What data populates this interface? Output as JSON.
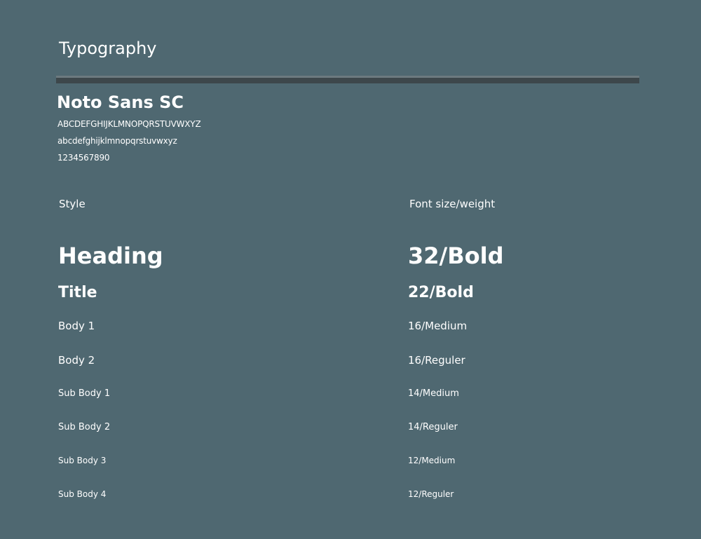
{
  "header": {
    "title": "Typography"
  },
  "font": {
    "name": "Noto Sans SC",
    "uppercase": "ABCDEFGHIJKLMNOPQRSTUVWXYZ",
    "lowercase": "abcdefghijklmnopqrstuvwxyz",
    "digits": "1234567890"
  },
  "table": {
    "columns": {
      "style": "Style",
      "size_weight": "Font size/weight"
    },
    "rows": [
      {
        "style": "Heading",
        "spec": "32/Bold"
      },
      {
        "style": "Title",
        "spec": "22/Bold"
      },
      {
        "style": "Body 1",
        "spec": "16/Medium"
      },
      {
        "style": "Body 2",
        "spec": "16/Reguler"
      },
      {
        "style": "Sub Body 1",
        "spec": "14/Medium"
      },
      {
        "style": "Sub Body 2",
        "spec": "14/Reguler"
      },
      {
        "style": "Sub Body 3",
        "spec": "12/Medium"
      },
      {
        "style": "Sub Body 4",
        "spec": "12/Reguler"
      }
    ]
  },
  "colors": {
    "background": "#4f6871",
    "text": "#ffffff",
    "divider": "#3d474b"
  }
}
